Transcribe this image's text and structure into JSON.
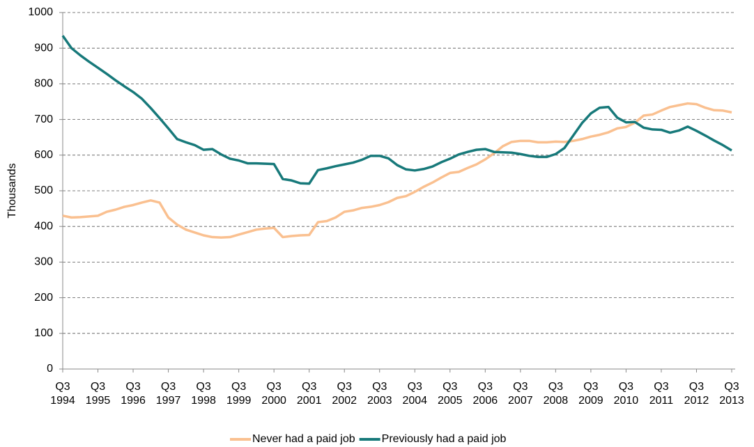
{
  "chart_data": {
    "type": "line",
    "y_label": "Thousands",
    "categories": [
      "Q3 1994",
      null,
      null,
      null,
      "Q3 1995",
      null,
      null,
      null,
      "Q3 1996",
      null,
      null,
      null,
      "Q3 1997",
      null,
      null,
      null,
      "Q3 1998",
      null,
      null,
      null,
      "Q3 1999",
      null,
      null,
      null,
      "Q3 2000",
      null,
      null,
      null,
      "Q3 2001",
      null,
      null,
      null,
      "Q3 2002",
      null,
      null,
      null,
      "Q3 2003",
      null,
      null,
      null,
      "Q3 2004",
      null,
      null,
      null,
      "Q3 2005",
      null,
      null,
      null,
      "Q3 2006",
      null,
      null,
      null,
      "Q3 2007",
      null,
      null,
      null,
      "Q3 2008",
      null,
      null,
      null,
      "Q3 2009",
      null,
      null,
      null,
      "Q3 2010",
      null,
      null,
      null,
      "Q3 2011",
      null,
      null,
      null,
      "Q3 2012",
      null,
      null,
      null,
      "Q3 2013"
    ],
    "series": [
      {
        "name": "Never had a paid job",
        "color": "#fac090",
        "values": [
          430,
          425,
          426,
          428,
          430,
          441,
          447,
          455,
          460,
          467,
          473,
          467,
          425,
          405,
          391,
          383,
          375,
          370,
          369,
          370,
          377,
          384,
          391,
          394,
          396,
          370,
          373,
          375,
          376,
          412,
          415,
          425,
          441,
          445,
          452,
          455,
          460,
          468,
          480,
          485,
          497,
          511,
          523,
          537,
          550,
          553,
          564,
          574,
          588,
          605,
          625,
          637,
          640,
          640,
          636,
          636,
          638,
          637,
          640,
          645,
          652,
          657,
          664,
          675,
          679,
          691,
          711,
          714,
          725,
          735,
          740,
          745,
          743,
          733,
          726,
          725,
          720
        ]
      },
      {
        "name": "Previously had a paid job",
        "color": "#17797a",
        "values": [
          935,
          900,
          880,
          862,
          845,
          828,
          810,
          793,
          777,
          758,
          732,
          704,
          675,
          645,
          636,
          628,
          615,
          617,
          602,
          590,
          585,
          577,
          577,
          576,
          575,
          533,
          529,
          521,
          520,
          558,
          563,
          569,
          574,
          579,
          587,
          598,
          598,
          591,
          572,
          560,
          557,
          561,
          568,
          580,
          590,
          602,
          609,
          615,
          617,
          609,
          608,
          607,
          603,
          598,
          595,
          595,
          603,
          620,
          655,
          690,
          717,
          733,
          735,
          705,
          692,
          693,
          677,
          672,
          671,
          663,
          669,
          680,
          668,
          655,
          641,
          628,
          613
        ]
      }
    ],
    "ylim": [
      0,
      1000
    ],
    "yticks": [
      0,
      100,
      200,
      300,
      400,
      500,
      600,
      700,
      800,
      900,
      1000
    ],
    "grid": true,
    "legend": "bottom"
  }
}
